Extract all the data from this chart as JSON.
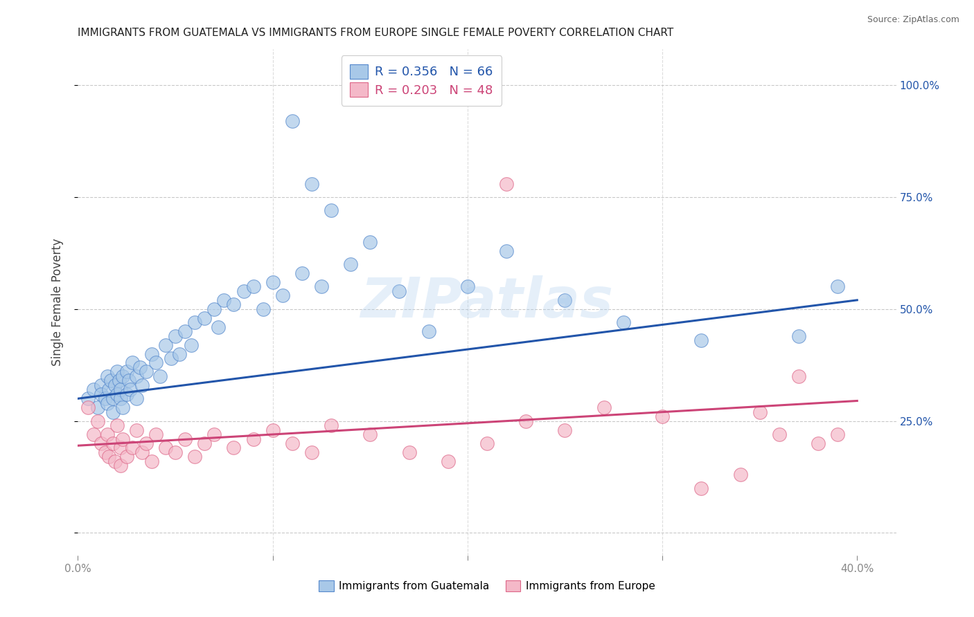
{
  "title": "IMMIGRANTS FROM GUATEMALA VS IMMIGRANTS FROM EUROPE SINGLE FEMALE POVERTY CORRELATION CHART",
  "source": "Source: ZipAtlas.com",
  "ylabel": "Single Female Poverty",
  "xlim": [
    0.0,
    0.42
  ],
  "ylim": [
    -0.05,
    1.08
  ],
  "blue_R": 0.356,
  "blue_N": 66,
  "pink_R": 0.203,
  "pink_N": 48,
  "blue_color": "#a8c8e8",
  "pink_color": "#f4b8c8",
  "blue_edge_color": "#5588cc",
  "pink_edge_color": "#dd6688",
  "blue_line_color": "#2255aa",
  "pink_line_color": "#cc4477",
  "blue_label": "Immigrants from Guatemala",
  "pink_label": "Immigrants from Europe",
  "watermark": "ZIPatlas",
  "blue_trend_x0": 0.0,
  "blue_trend_y0": 0.3,
  "blue_trend_x1": 0.4,
  "blue_trend_y1": 0.52,
  "pink_trend_x0": 0.0,
  "pink_trend_y0": 0.195,
  "pink_trend_x1": 0.4,
  "pink_trend_y1": 0.295,
  "title_fontsize": 11,
  "right_axis_color": "#2255aa",
  "background_color": "#ffffff",
  "grid_color": "#bbbbbb",
  "blue_x": [
    0.005,
    0.008,
    0.01,
    0.012,
    0.012,
    0.014,
    0.015,
    0.015,
    0.016,
    0.017,
    0.018,
    0.018,
    0.019,
    0.02,
    0.02,
    0.021,
    0.022,
    0.022,
    0.023,
    0.023,
    0.025,
    0.025,
    0.026,
    0.027,
    0.028,
    0.03,
    0.03,
    0.032,
    0.033,
    0.035,
    0.038,
    0.04,
    0.042,
    0.045,
    0.048,
    0.05,
    0.052,
    0.055,
    0.058,
    0.06,
    0.065,
    0.07,
    0.072,
    0.075,
    0.08,
    0.085,
    0.09,
    0.095,
    0.1,
    0.105,
    0.11,
    0.115,
    0.12,
    0.125,
    0.13,
    0.14,
    0.15,
    0.165,
    0.18,
    0.2,
    0.22,
    0.25,
    0.28,
    0.32,
    0.37,
    0.39
  ],
  "blue_y": [
    0.3,
    0.32,
    0.28,
    0.33,
    0.31,
    0.3,
    0.35,
    0.29,
    0.32,
    0.34,
    0.3,
    0.27,
    0.33,
    0.36,
    0.31,
    0.34,
    0.32,
    0.3,
    0.35,
    0.28,
    0.36,
    0.31,
    0.34,
    0.32,
    0.38,
    0.35,
    0.3,
    0.37,
    0.33,
    0.36,
    0.4,
    0.38,
    0.35,
    0.42,
    0.39,
    0.44,
    0.4,
    0.45,
    0.42,
    0.47,
    0.48,
    0.5,
    0.46,
    0.52,
    0.51,
    0.54,
    0.55,
    0.5,
    0.56,
    0.53,
    0.92,
    0.58,
    0.78,
    0.55,
    0.72,
    0.6,
    0.65,
    0.54,
    0.45,
    0.55,
    0.63,
    0.52,
    0.47,
    0.43,
    0.44,
    0.55
  ],
  "pink_x": [
    0.005,
    0.008,
    0.01,
    0.012,
    0.014,
    0.015,
    0.016,
    0.018,
    0.019,
    0.02,
    0.022,
    0.022,
    0.023,
    0.025,
    0.028,
    0.03,
    0.033,
    0.035,
    0.038,
    0.04,
    0.045,
    0.05,
    0.055,
    0.06,
    0.065,
    0.07,
    0.08,
    0.09,
    0.1,
    0.11,
    0.12,
    0.13,
    0.15,
    0.17,
    0.19,
    0.21,
    0.22,
    0.23,
    0.25,
    0.27,
    0.3,
    0.32,
    0.34,
    0.35,
    0.36,
    0.37,
    0.38,
    0.39
  ],
  "pink_y": [
    0.28,
    0.22,
    0.25,
    0.2,
    0.18,
    0.22,
    0.17,
    0.2,
    0.16,
    0.24,
    0.19,
    0.15,
    0.21,
    0.17,
    0.19,
    0.23,
    0.18,
    0.2,
    0.16,
    0.22,
    0.19,
    0.18,
    0.21,
    0.17,
    0.2,
    0.22,
    0.19,
    0.21,
    0.23,
    0.2,
    0.18,
    0.24,
    0.22,
    0.18,
    0.16,
    0.2,
    0.78,
    0.25,
    0.23,
    0.28,
    0.26,
    0.1,
    0.13,
    0.27,
    0.22,
    0.35,
    0.2,
    0.22
  ]
}
